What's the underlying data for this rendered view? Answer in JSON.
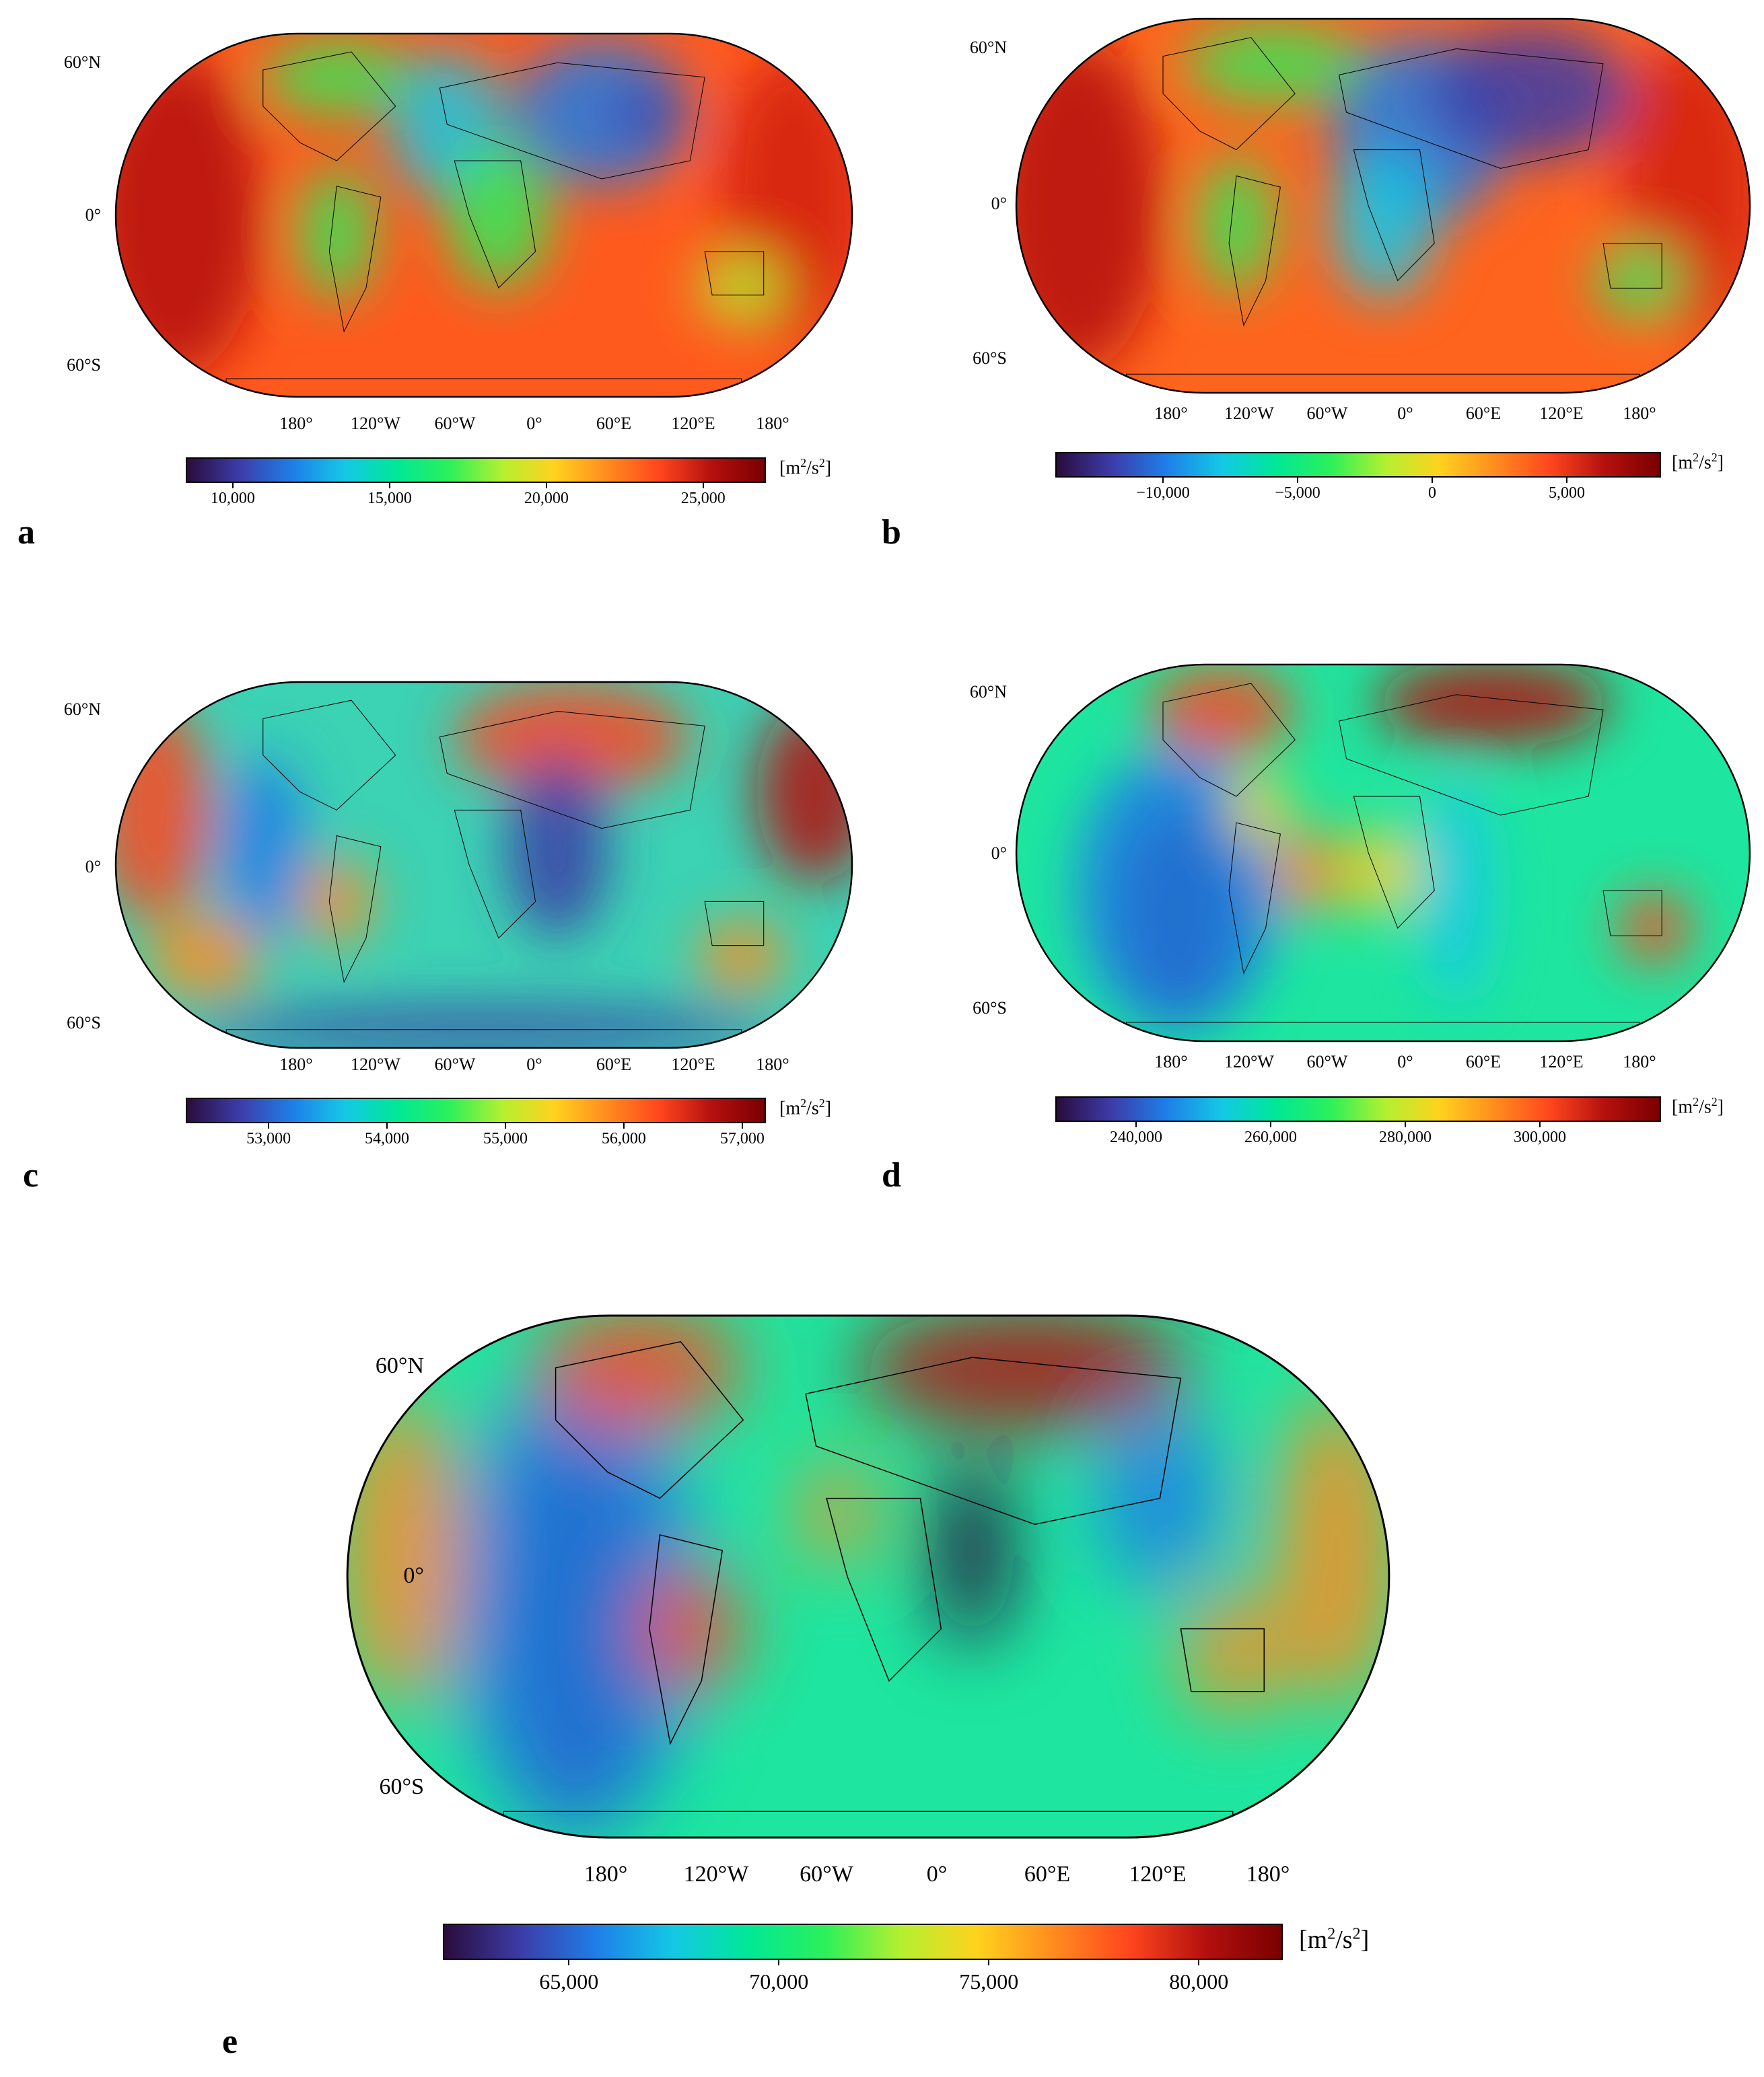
{
  "figure": {
    "colormap": [
      "#2a0c3c",
      "#3c3ca8",
      "#1e7ee8",
      "#14c8e6",
      "#00e896",
      "#2cf05a",
      "#b4f030",
      "#ffd21e",
      "#ff8c1e",
      "#ff461e",
      "#b4100e",
      "#7a0000"
    ],
    "lat_labels": [
      "60°N",
      "0°",
      "60°S"
    ],
    "lon_labels": [
      "180°",
      "120°W",
      "60°W",
      "0°",
      "60°E",
      "120°E",
      "180°"
    ],
    "panels": [
      {
        "letter": "a",
        "unit_base": "[m",
        "unit_mid": "/s",
        "unit_end": "]",
        "unit_sup": "2",
        "tick_labels": [
          "10,000",
          "15,000",
          "20,000",
          "25,000"
        ],
        "tick_values": [
          10000,
          15000,
          20000,
          25000
        ],
        "range": [
          8500,
          27000
        ],
        "background_color": "#ff5a1e"
      },
      {
        "letter": "b",
        "unit_base": "[m",
        "unit_mid": "/s",
        "unit_end": "]",
        "unit_sup": "2",
        "tick_labels": [
          "−10,000",
          "−5,000",
          "0",
          "5,000"
        ],
        "tick_values": [
          -10000,
          -5000,
          0,
          5000
        ],
        "range": [
          -14000,
          8500
        ],
        "background_color": "#ff641e"
      },
      {
        "letter": "c",
        "unit_base": "[m",
        "unit_mid": "/s",
        "unit_end": "]",
        "unit_sup": "2",
        "tick_labels": [
          "53,000",
          "54,000",
          "55,000",
          "56,000",
          "57,000"
        ],
        "tick_values": [
          53000,
          54000,
          55000,
          56000,
          57000
        ],
        "range": [
          52300,
          57200
        ],
        "background_color": "#3cd2b4"
      },
      {
        "letter": "d",
        "unit_base": "[m",
        "unit_mid": "/s",
        "unit_end": "]",
        "unit_sup": "2",
        "tick_labels": [
          "240,000",
          "260,000",
          "280,000",
          "300,000"
        ],
        "tick_values": [
          240000,
          260000,
          280000,
          300000
        ],
        "range": [
          228000,
          318000
        ],
        "background_color": "#1ee6a0"
      },
      {
        "letter": "e",
        "unit_base": "[m",
        "unit_mid": "/s",
        "unit_end": "]",
        "unit_sup": "2",
        "tick_labels": [
          "65,000",
          "70,000",
          "75,000",
          "80,000"
        ],
        "tick_values": [
          65000,
          70000,
          75000,
          80000
        ],
        "range": [
          62000,
          82000
        ],
        "background_color": "#1ee6a0"
      }
    ]
  }
}
